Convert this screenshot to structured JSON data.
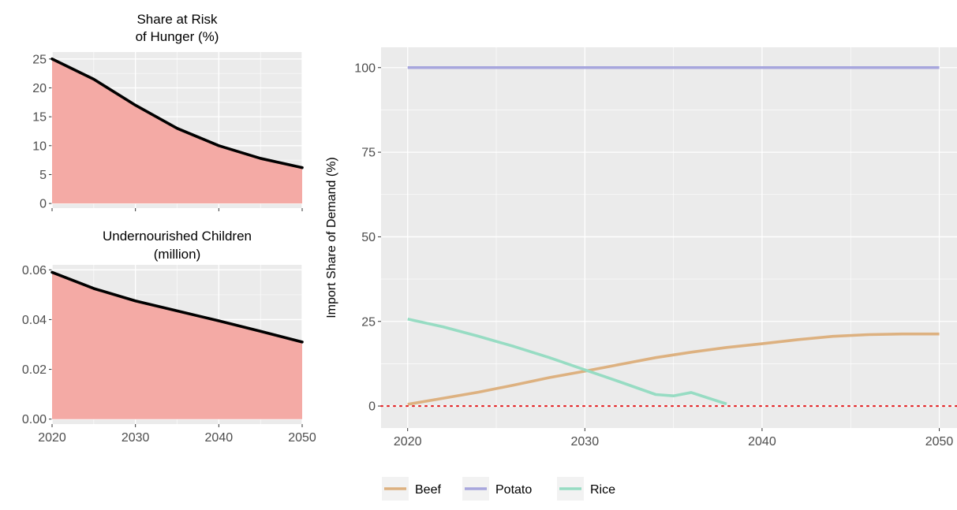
{
  "chart_data": [
    {
      "type": "area",
      "title_lines": [
        "Share at Risk",
        "of Hunger (%)"
      ],
      "x": [
        2020,
        2025,
        2030,
        2035,
        2040,
        2045,
        2050
      ],
      "values": [
        25.0,
        21.5,
        17.0,
        13.0,
        10.0,
        7.8,
        6.2
      ],
      "xlim": [
        2020,
        2050
      ],
      "ylim": [
        -0.8,
        26.2
      ],
      "xticks": [
        2020,
        2030,
        2040,
        2050
      ],
      "yticks": [
        0,
        5,
        10,
        15,
        20,
        25
      ],
      "ytick_labels": [
        "0",
        "5",
        "10",
        "15",
        "20",
        "25"
      ],
      "fill_color": "#F4AAA5",
      "line_color": "#000000",
      "grid": true
    },
    {
      "type": "area",
      "title_lines": [
        "Undernourished Children",
        "(million)"
      ],
      "x": [
        2020,
        2025,
        2030,
        2035,
        2040,
        2045,
        2050
      ],
      "values": [
        0.059,
        0.0525,
        0.0475,
        0.0435,
        0.0395,
        0.0353,
        0.031
      ],
      "xlim": [
        2020,
        2050
      ],
      "ylim": [
        -0.002,
        0.062
      ],
      "xticks": [
        2020,
        2030,
        2040,
        2050
      ],
      "xtick_labels": [
        "2020",
        "2030",
        "2040",
        "2050"
      ],
      "yticks": [
        0.0,
        0.02,
        0.04,
        0.06
      ],
      "ytick_labels": [
        "0.00",
        "0.02",
        "0.04",
        "0.06"
      ],
      "fill_color": "#F4AAA5",
      "line_color": "#000000",
      "grid": true
    },
    {
      "type": "line",
      "ylabel": "Import Share of Demand (%)",
      "xlim": [
        2018.5,
        2051
      ],
      "ylim": [
        -6.5,
        106
      ],
      "xticks": [
        2020,
        2030,
        2040,
        2050
      ],
      "xtick_labels": [
        "2020",
        "2030",
        "2040",
        "2050"
      ],
      "yticks": [
        0,
        25,
        50,
        75,
        100
      ],
      "ytick_labels": [
        "0",
        "25",
        "50",
        "75",
        "100"
      ],
      "reference_line": {
        "y": 0,
        "color": "#E41A1C",
        "style": "dotted"
      },
      "series": [
        {
          "name": "Beef",
          "color": "#DDB180",
          "x": [
            2020,
            2022,
            2024,
            2026,
            2028,
            2030,
            2032,
            2034,
            2036,
            2038,
            2040,
            2042,
            2044,
            2046,
            2048,
            2050
          ],
          "y": [
            0.5,
            2.3,
            4.1,
            6.2,
            8.4,
            10.3,
            12.3,
            14.3,
            15.9,
            17.3,
            18.4,
            19.6,
            20.6,
            21.1,
            21.3,
            21.3
          ]
        },
        {
          "name": "Potato",
          "color": "#A7A6DD",
          "x": [
            2020,
            2050
          ],
          "y": [
            100,
            100
          ]
        },
        {
          "name": "Rice",
          "color": "#97DCC3",
          "x": [
            2020,
            2022,
            2024,
            2026,
            2028,
            2030,
            2032,
            2034,
            2035,
            2036,
            2038
          ],
          "y": [
            25.7,
            23.4,
            20.6,
            17.6,
            14.3,
            10.7,
            7.1,
            3.4,
            3.0,
            4.0,
            0.6
          ]
        }
      ],
      "legend_position": "bottom"
    }
  ]
}
